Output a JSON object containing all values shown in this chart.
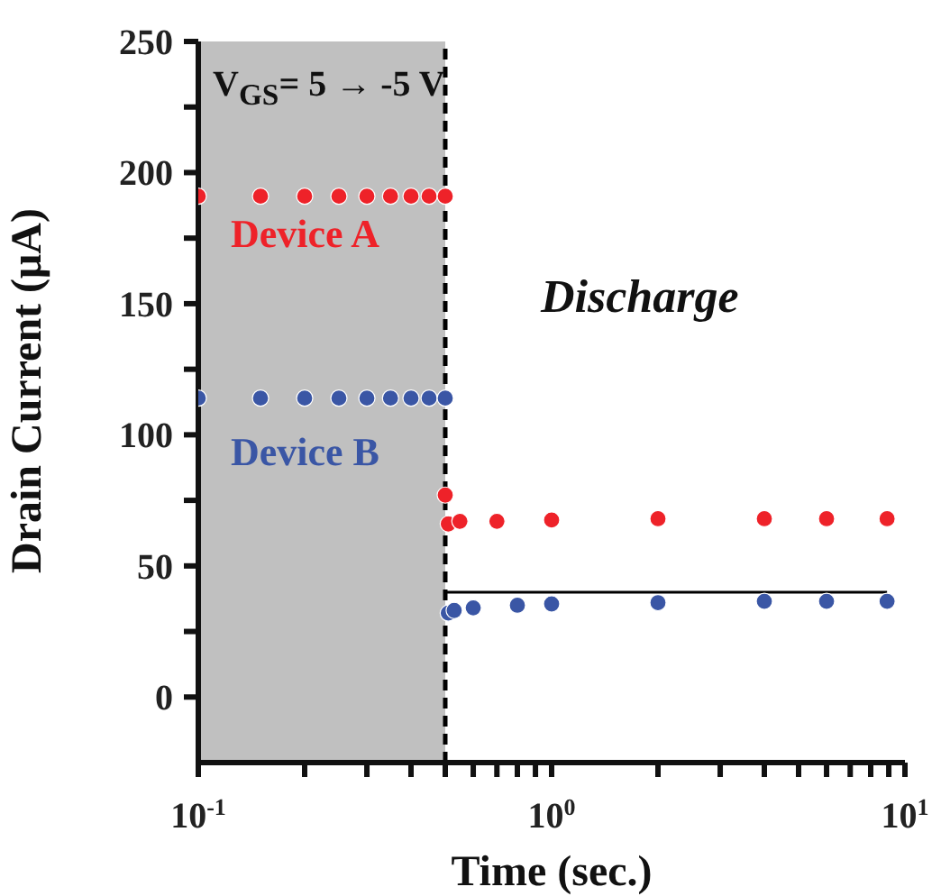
{
  "chart_data": {
    "type": "scatter",
    "xlabel": "Time (sec.)",
    "ylabel": "Drain Current (μA)",
    "log": "x",
    "marker": "circle",
    "xlim": [
      0.1,
      10
    ],
    "xticks": [
      {
        "value": 0.1,
        "label": "10$^{-1}$"
      },
      {
        "value": 0.2,
        "label": null
      },
      {
        "value": 0.3,
        "label": null
      },
      {
        "value": 0.4,
        "label": null
      },
      {
        "value": 0.5,
        "label": null
      },
      {
        "value": 0.6,
        "label": null
      },
      {
        "value": 0.7,
        "label": null
      },
      {
        "value": 0.8,
        "label": null
      },
      {
        "value": 0.9,
        "label": null
      },
      {
        "value": 1,
        "label": "10$^{0}$"
      },
      {
        "value": 2,
        "label": null
      },
      {
        "value": 3,
        "label": null
      },
      {
        "value": 4,
        "label": null
      },
      {
        "value": 5,
        "label": null
      },
      {
        "value": 6,
        "label": null
      },
      {
        "value": 7,
        "label": null
      },
      {
        "value": 8,
        "label": null
      },
      {
        "value": 9,
        "label": null
      },
      {
        "value": 10,
        "label": "10$^{1}$"
      }
    ],
    "ylim": [
      -25,
      250
    ],
    "yticks": [
      0,
      {
        "value": 25,
        "label": null
      },
      50,
      {
        "value": 75,
        "label": null
      },
      100,
      {
        "value": 125,
        "label": null
      },
      150,
      {
        "value": 175,
        "label": null
      },
      200,
      {
        "value": 225,
        "label": null
      },
      250
    ],
    "series": [
      {
        "name": "Device A",
        "color": "#ee2229",
        "x": [
          0.1,
          0.15,
          0.2,
          0.25,
          0.3,
          0.35,
          0.4,
          0.45,
          0.5,
          0.5,
          0.51,
          0.55,
          0.7,
          1,
          2,
          4,
          6,
          8.9
        ],
        "values": [
          191,
          191,
          191,
          191,
          191,
          191,
          191,
          191,
          191,
          77,
          66,
          67,
          67,
          67.5,
          68,
          68,
          68,
          68
        ]
      },
      {
        "name": "Device B",
        "color": "#3a56a5",
        "x": [
          0.1,
          0.15,
          0.2,
          0.25,
          0.3,
          0.35,
          0.4,
          0.45,
          0.5,
          0.51,
          0.53,
          0.6,
          0.8,
          1,
          2,
          4,
          6,
          8.9
        ],
        "values": [
          114,
          114,
          114,
          114,
          114,
          114,
          114,
          114,
          114,
          32,
          33,
          34,
          35,
          35.5,
          36,
          36.5,
          36.5,
          36.5
        ]
      },
      {
        "type": "line",
        "color": "#000000",
        "marker": "none",
        "x": [
          0.5,
          8.9
        ],
        "values": [
          40,
          40
        ]
      }
    ],
    "bands": [
      {
        "axis": "x",
        "from": 0.1,
        "to": 0.5,
        "color": "#c0c0c0"
      }
    ],
    "ref_lines": [
      {
        "axis": "x",
        "value": 0.5,
        "line_style": "dashed",
        "color": "#000000"
      }
    ],
    "annotations": [
      "V$_{GS}$= 5 → -5 V",
      "Discharge"
    ]
  }
}
